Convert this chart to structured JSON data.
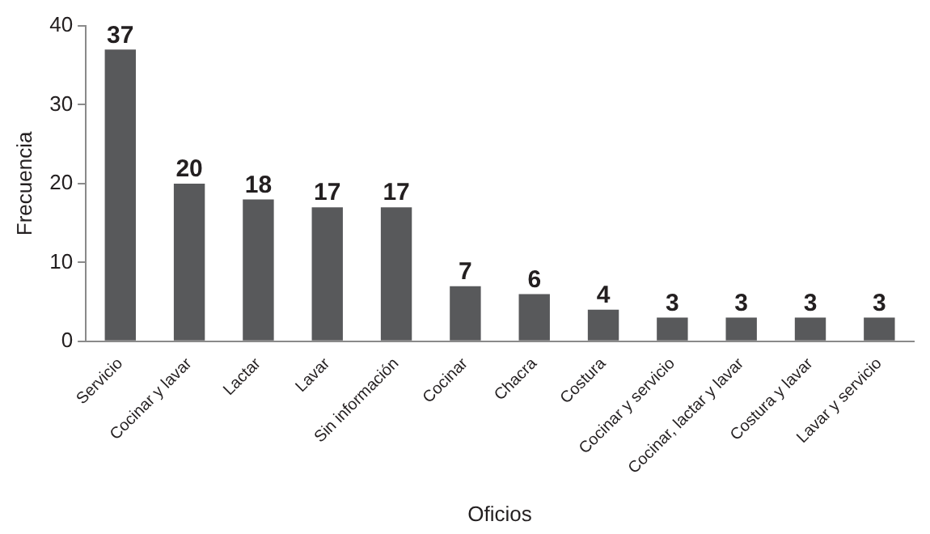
{
  "chart_data": {
    "type": "bar",
    "xlabel": "Oficios",
    "ylabel": "Frecuencia",
    "categories": [
      "Servicio",
      "Cocinar y lavar",
      "Lactar",
      "Lavar",
      "Sin información",
      "Cocinar",
      "Chacra",
      "Costura",
      "Cocinar y servicio",
      "Cocinar, lactar y lavar",
      "Costura y lavar",
      "Lavar y servicio"
    ],
    "values": [
      37,
      20,
      18,
      17,
      17,
      7,
      6,
      4,
      3,
      3,
      3,
      3
    ],
    "color": "#58595b",
    "ylim": [
      0,
      40
    ],
    "yticks": [
      0,
      10,
      20,
      30,
      40
    ],
    "grid": false,
    "data_labels": true
  }
}
